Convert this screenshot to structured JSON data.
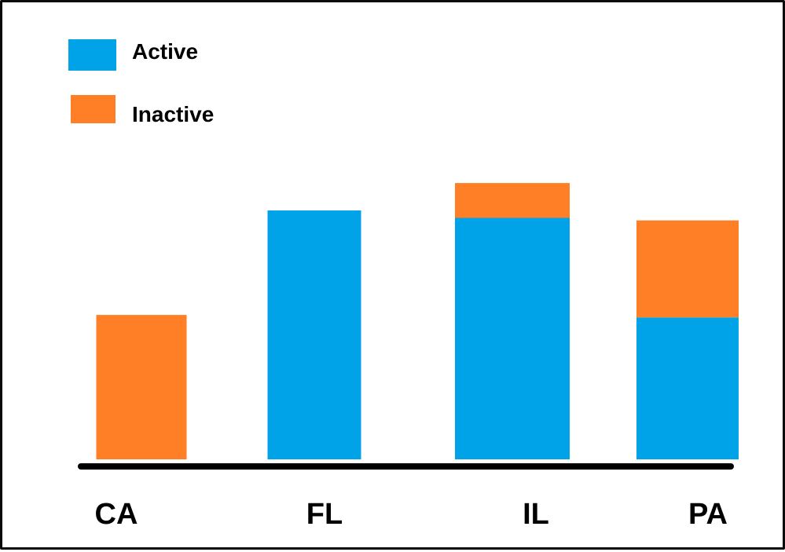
{
  "chart_data": {
    "type": "bar",
    "stacked": true,
    "categories": [
      "CA",
      "FL",
      "IL",
      "PA"
    ],
    "series": [
      {
        "name": "Active",
        "color": "#00a2e8",
        "values": [
          0,
          100,
          97,
          57
        ]
      },
      {
        "name": "Inactive",
        "color": "#ff7f27",
        "values": [
          58,
          0,
          14,
          39
        ]
      }
    ],
    "legend_position": "top-left",
    "grid": false,
    "ylim": [
      0,
      120
    ]
  }
}
